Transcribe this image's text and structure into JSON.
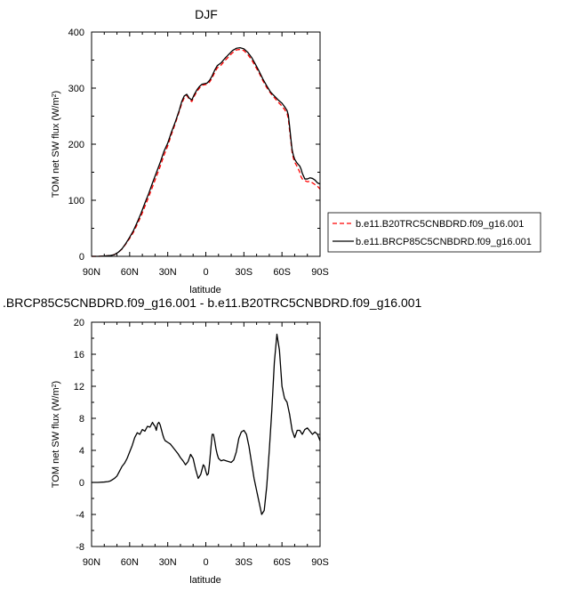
{
  "chart_data": [
    {
      "type": "line",
      "title": "DJF",
      "xlabel": "latitude",
      "ylabel": "TOM net SW flux (W/m",
      "ylabel_sup": "2",
      "ylabel_close": ")",
      "xlim": [
        90,
        -90
      ],
      "ylim": [
        0,
        400
      ],
      "xticks": [
        90,
        60,
        30,
        0,
        -30,
        -60,
        -90
      ],
      "xtick_labels": [
        "90N",
        "60N",
        "30N",
        "0",
        "30S",
        "60S",
        "90S"
      ],
      "yticks": [
        0,
        100,
        200,
        300,
        400
      ],
      "ytick_labels": [
        "0",
        "100",
        "200",
        "300",
        "400"
      ],
      "legend_position": "right",
      "series": [
        {
          "name": "b.e11.B20TRC5CNBDRD.f09_g16.001",
          "color": "#ff0000",
          "dash": "dashed",
          "x": [
            90,
            85,
            80,
            75,
            72,
            69,
            66,
            63,
            60,
            57,
            54,
            51,
            48,
            45,
            42,
            39,
            36,
            33,
            30,
            27,
            24,
            21,
            19,
            17,
            15,
            13,
            11,
            9,
            7,
            5,
            3,
            1,
            -1,
            -3,
            -5,
            -7,
            -9,
            -12,
            -15,
            -18,
            -21,
            -24,
            -27,
            -30,
            -33,
            -36,
            -39,
            -42,
            -45,
            -48,
            -51,
            -54,
            -57,
            -60,
            -62,
            -64,
            -65,
            -66,
            -67,
            -68,
            -69,
            -70,
            -72,
            -74,
            -75,
            -76,
            -78,
            -80,
            -82,
            -84,
            -86,
            -88,
            -90
          ],
          "y": [
            0,
            0,
            0.5,
            1.5,
            3,
            7,
            13,
            22,
            32,
            43,
            57,
            72,
            89,
            106,
            124,
            142,
            160,
            180,
            197,
            218,
            237,
            258,
            272,
            283,
            287,
            280,
            276,
            286,
            294,
            300,
            305,
            306,
            307,
            311,
            318,
            328,
            336,
            341,
            349,
            356,
            363,
            368,
            369,
            367,
            360,
            351,
            339,
            327,
            313,
            301,
            291,
            283,
            275,
            268,
            262,
            255,
            245,
            225,
            205,
            185,
            175,
            168,
            160,
            150,
            142,
            138,
            135,
            133,
            134,
            131,
            128,
            125,
            120
          ]
        },
        {
          "name": "b.e11.BRCP85C5CNBDRD.f09_g16.001",
          "color": "#000000",
          "dash": "solid",
          "x": [
            90,
            85,
            80,
            75,
            72,
            69,
            66,
            63,
            60,
            57,
            54,
            51,
            48,
            45,
            42,
            39,
            36,
            33,
            30,
            27,
            24,
            21,
            19,
            17,
            15,
            13,
            11,
            9,
            7,
            5,
            3,
            1,
            -1,
            -3,
            -5,
            -7,
            -9,
            -12,
            -15,
            -18,
            -21,
            -24,
            -27,
            -30,
            -33,
            -36,
            -39,
            -42,
            -45,
            -48,
            -51,
            -54,
            -57,
            -60,
            -62,
            -64,
            -65,
            -66,
            -67,
            -68,
            -69,
            -70,
            -72,
            -74,
            -75,
            -76,
            -78,
            -80,
            -82,
            -84,
            -86,
            -88,
            -90
          ],
          "y": [
            0,
            0,
            0.5,
            1.5,
            3,
            7.2,
            13.5,
            23,
            34,
            46,
            61,
            77,
            95,
            112,
            131,
            149,
            167,
            187,
            202,
            222,
            240,
            260,
            276,
            286,
            289,
            282,
            279,
            289,
            297,
            303,
            307,
            308,
            309,
            314,
            322,
            332,
            340,
            345,
            353,
            360,
            367,
            371,
            372,
            370,
            364,
            355,
            343,
            330,
            316,
            304,
            293,
            286,
            279,
            273,
            267,
            260,
            252,
            232,
            210,
            190,
            180,
            173,
            166,
            161,
            156,
            148,
            138,
            138,
            140,
            139,
            136,
            131,
            129
          ]
        }
      ]
    },
    {
      "type": "line",
      "title": ".BRCP85C5CNBDRD.f09_g16.001 - b.e11.B20TRC5CNBDRD.f09_g16.001",
      "xlabel": "latitude",
      "ylabel": "TOM net SW flux (W/m",
      "ylabel_sup": "2",
      "ylabel_close": ")",
      "xlim": [
        90,
        -90
      ],
      "ylim": [
        -8,
        20
      ],
      "xticks": [
        90,
        60,
        30,
        0,
        -30,
        -60,
        -90
      ],
      "xtick_labels": [
        "90N",
        "60N",
        "30N",
        "0",
        "30S",
        "60S",
        "90S"
      ],
      "yticks": [
        -8,
        -4,
        0,
        4,
        8,
        12,
        16,
        20
      ],
      "ytick_labels": [
        "-8",
        "-4",
        "0",
        "4",
        "8",
        "12",
        "16",
        "20"
      ],
      "series": [
        {
          "color": "#000000",
          "dash": "solid",
          "x": [
            90,
            85,
            80,
            77,
            75,
            72,
            70,
            68,
            66,
            64,
            62,
            60,
            58,
            56,
            54,
            52,
            50,
            48,
            46,
            44,
            42,
            41,
            40,
            39,
            38,
            37,
            36,
            35,
            34,
            33,
            32,
            31,
            30,
            28,
            26,
            24,
            22,
            20,
            18,
            16,
            14,
            12,
            10,
            8,
            6,
            4,
            3,
            2,
            1,
            0,
            -1,
            -2,
            -3,
            -4,
            -5,
            -6,
            -7,
            -8,
            -9,
            -10,
            -12,
            -14,
            -16,
            -18,
            -20,
            -22,
            -24,
            -26,
            -28,
            -30,
            -32,
            -34,
            -36,
            -38,
            -40,
            -42,
            -44,
            -46,
            -48,
            -50,
            -52,
            -54,
            -56,
            -58,
            -60,
            -62,
            -64,
            -66,
            -68,
            -70,
            -72,
            -74,
            -76,
            -78,
            -80,
            -82,
            -84,
            -86,
            -88,
            -90
          ],
          "y": [
            0,
            0,
            0.05,
            0.1,
            0.2,
            0.5,
            0.8,
            1.4,
            2.0,
            2.4,
            3.0,
            3.8,
            4.6,
            5.6,
            6.2,
            6.0,
            6.6,
            6.4,
            7.0,
            6.9,
            7.5,
            7.2,
            7.0,
            6.5,
            7.3,
            7.5,
            7.2,
            6.6,
            6.0,
            5.5,
            5.2,
            5.1,
            5.0,
            4.8,
            4.4,
            4.0,
            3.6,
            3.1,
            2.7,
            2.2,
            2.6,
            3.5,
            3.0,
            1.6,
            0.5,
            1.0,
            1.6,
            2.2,
            2.0,
            1.4,
            0.9,
            1.1,
            2.5,
            4.3,
            6.0,
            6.0,
            5.2,
            4.2,
            3.5,
            3.0,
            2.7,
            2.8,
            2.7,
            2.6,
            2.5,
            2.8,
            3.8,
            5.5,
            6.3,
            6.5,
            6.0,
            4.5,
            2.5,
            0.5,
            -1.0,
            -2.5,
            -4.0,
            -3.5,
            -0.5,
            4.0,
            9.0,
            15.0,
            18.5,
            16.5,
            12.0,
            10.5,
            10.0,
            8.5,
            6.5,
            5.6,
            6.5,
            6.5,
            6.0,
            6.6,
            6.8,
            6.4,
            6.0,
            6.3,
            6.0,
            5.2
          ]
        }
      ]
    }
  ]
}
